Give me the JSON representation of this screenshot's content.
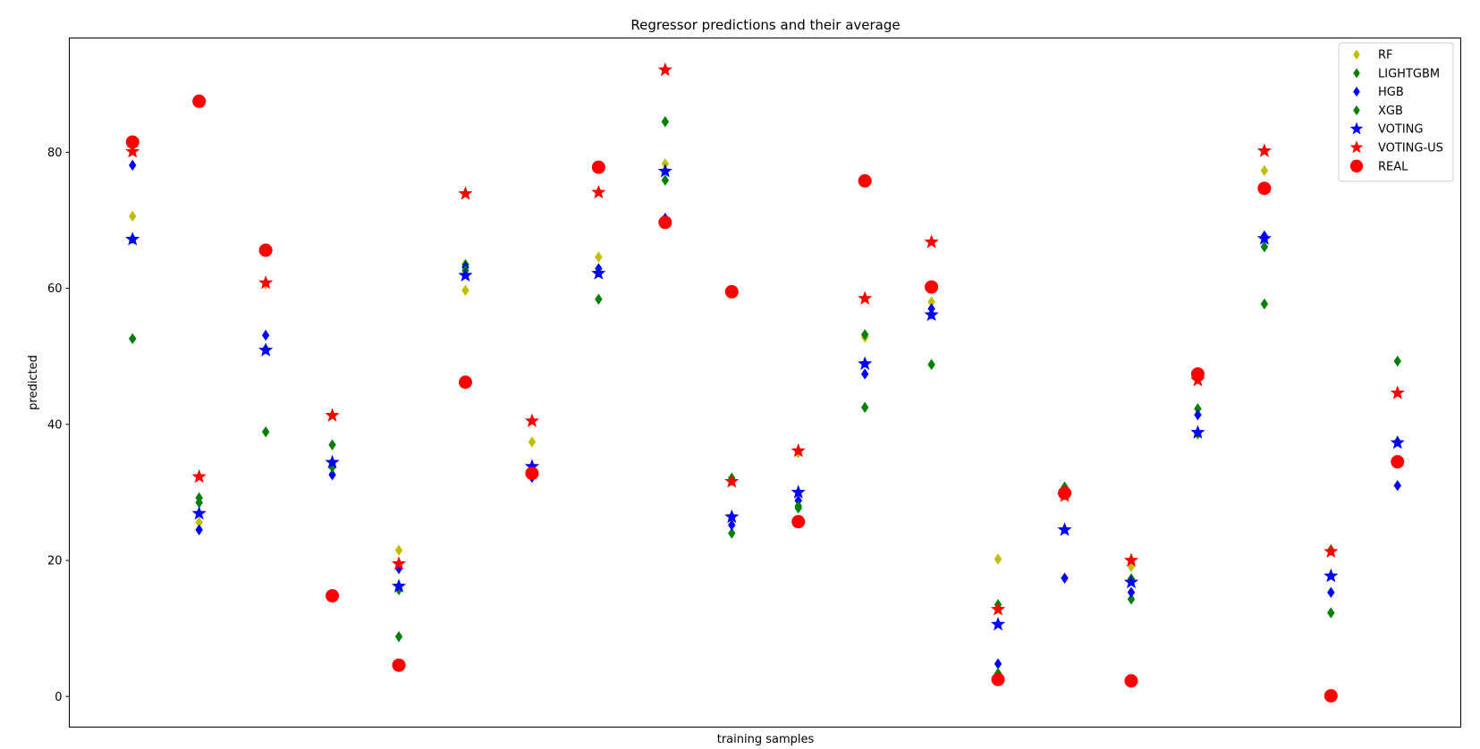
{
  "chart_data": {
    "type": "scatter",
    "title": "Regressor predictions and their average",
    "xlabel": "training samples",
    "ylabel": "predicted",
    "xlim": [
      -0.95,
      19.95
    ],
    "ylim": [
      -4.5,
      96.8
    ],
    "yticks": [
      0,
      20,
      40,
      60,
      80
    ],
    "x_ticks_shown": false,
    "grid": false,
    "legend_position": "top-right",
    "x": [
      0,
      1,
      2,
      3,
      4,
      5,
      6,
      7,
      8,
      9,
      10,
      11,
      12,
      13,
      14,
      15,
      16,
      17,
      18,
      19
    ],
    "series": [
      {
        "name": "RF",
        "marker": "diamond",
        "color": "#bfbf00",
        "values": [
          70.6,
          25.6,
          60.6,
          33.9,
          21.5,
          59.7,
          37.4,
          64.6,
          78.3,
          31.7,
          35.8,
          52.8,
          58.0,
          20.2,
          24.6,
          19.1,
          38.5,
          77.3,
          21.6,
          34.2
        ]
      },
      {
        "name": "LIGHTGBM",
        "marker": "diamond",
        "color": "#008000",
        "values": [
          52.6,
          29.2,
          38.9,
          37.0,
          8.8,
          63.5,
          33.1,
          58.4,
          84.5,
          24.0,
          27.7,
          42.5,
          48.8,
          13.5,
          30.8,
          14.3,
          42.3,
          57.7,
          12.3,
          49.3
        ]
      },
      {
        "name": "HGB",
        "marker": "diamond",
        "color": "#0000ff",
        "values": [
          78.1,
          24.5,
          53.1,
          32.6,
          18.8,
          63.1,
          32.2,
          62.9,
          70.3,
          25.2,
          28.8,
          47.4,
          57.0,
          4.8,
          17.4,
          15.3,
          41.4,
          67.7,
          15.3,
          31.0
        ]
      },
      {
        "name": "XGB",
        "marker": "diamond",
        "color": "#008000",
        "values": [
          67.3,
          28.5,
          51.1,
          33.7,
          15.7,
          62.6,
          33.0,
          62.4,
          75.9,
          32.1,
          28.0,
          53.2,
          56.2,
          3.4,
          30.5,
          17.3,
          38.7,
          66.1,
          21.5,
          37.5
        ]
      },
      {
        "name": "VOTING",
        "marker": "star",
        "color": "#0000ff",
        "values": [
          67.2,
          26.9,
          50.9,
          34.4,
          16.2,
          61.9,
          33.8,
          62.2,
          77.2,
          26.4,
          30.0,
          48.9,
          56.1,
          10.6,
          24.5,
          16.8,
          38.8,
          67.3,
          17.7,
          37.3
        ]
      },
      {
        "name": "VOTING-US",
        "marker": "star",
        "color": "#ff0000",
        "values": [
          80.1,
          32.3,
          60.8,
          41.3,
          19.5,
          73.9,
          40.5,
          74.1,
          92.1,
          31.6,
          36.1,
          58.5,
          66.8,
          12.8,
          29.5,
          20.0,
          46.5,
          80.2,
          21.3,
          44.6
        ]
      },
      {
        "name": "REAL",
        "marker": "circle",
        "color": "#ff0000",
        "values": [
          81.5,
          87.5,
          65.6,
          14.8,
          4.6,
          46.2,
          32.8,
          77.8,
          69.7,
          59.5,
          25.7,
          75.8,
          60.2,
          2.5,
          29.9,
          2.3,
          47.4,
          74.7,
          0.1,
          34.5
        ]
      }
    ]
  }
}
